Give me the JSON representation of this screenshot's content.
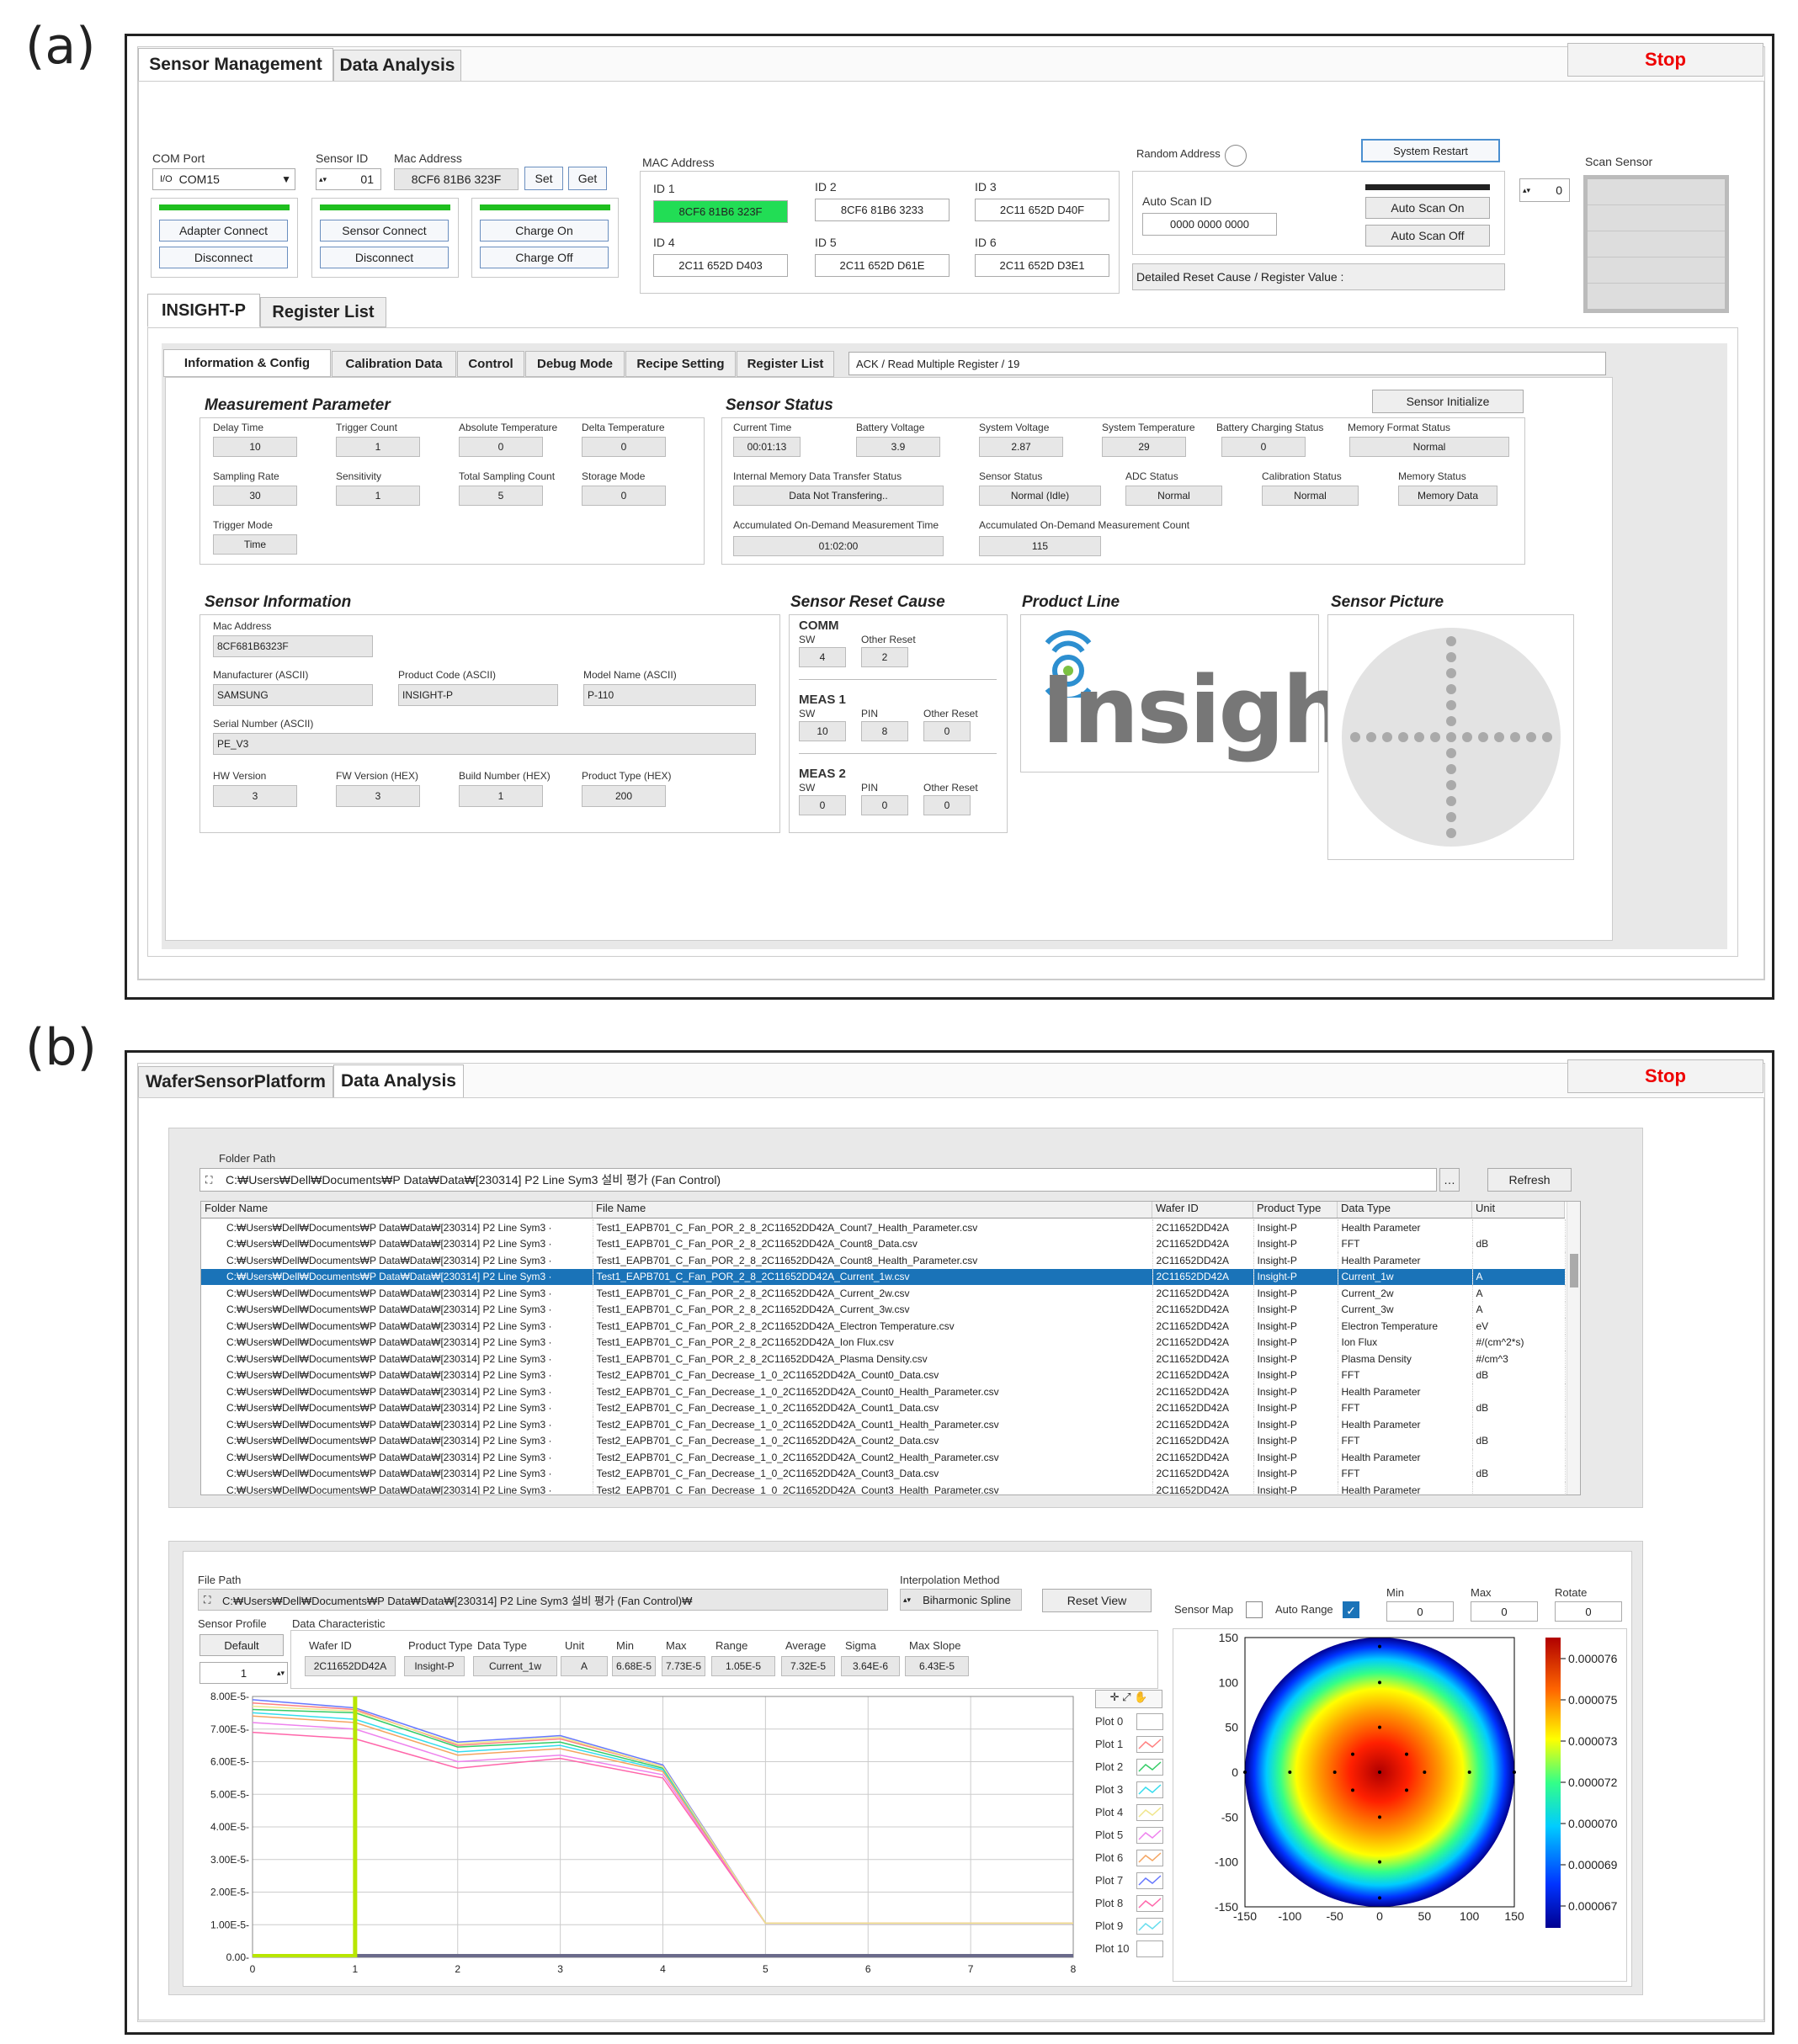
{
  "labels": {
    "a": "(a)",
    "b": "(b)"
  },
  "a": {
    "tabs": [
      "Sensor Management",
      "Data Analysis"
    ],
    "stop": "Stop",
    "com": {
      "label": "COM Port",
      "value": "COM15",
      "adapter_connect": "Adapter Connect",
      "disconnect": "Disconnect"
    },
    "sensor": {
      "id_label": "Sensor ID",
      "id": "01",
      "mac_label": "Mac Address",
      "mac": "8CF6 81B6 323F",
      "set": "Set",
      "get": "Get",
      "connect": "Sensor Connect",
      "disconnect": "Disconnect"
    },
    "charge": {
      "on": "Charge On",
      "off": "Charge Off"
    },
    "mac_panel": {
      "title": "MAC Address",
      "ids": [
        {
          "label": "ID 1",
          "value": "8CF6 81B6 323F",
          "active": true
        },
        {
          "label": "ID 2",
          "value": "8CF6 81B6 3233"
        },
        {
          "label": "ID 3",
          "value": "2C11 652D D40F"
        },
        {
          "label": "ID 4",
          "value": "2C11 652D D403"
        },
        {
          "label": "ID 5",
          "value": "2C11 652D D61E"
        },
        {
          "label": "ID 6",
          "value": "2C11 652D D3E1"
        }
      ]
    },
    "random_address": "Random Address",
    "system_restart": "System Restart",
    "auto_scan": {
      "label": "Auto Scan ID",
      "value": "0000 0000 0000",
      "on": "Auto Scan On",
      "off": "Auto Scan Off"
    },
    "detailed_reset": "Detailed Reset Cause / Register Value :",
    "scan_sensor": {
      "label": "Scan Sensor",
      "count": "0"
    },
    "device_tabs": [
      "INSIGHT-P",
      "Register List"
    ],
    "sub_tabs": [
      "Information & Config",
      "Calibration Data",
      "Control",
      "Debug Mode",
      "Recipe Setting",
      "Register List"
    ],
    "ack": "ACK / Read Multiple Register / 19",
    "measurement": {
      "title": "Measurement Parameter",
      "fields": [
        {
          "label": "Delay Time",
          "value": "10"
        },
        {
          "label": "Trigger Count",
          "value": "1"
        },
        {
          "label": "Absolute Temperature",
          "value": "0"
        },
        {
          "label": "Delta Temperature",
          "value": "0"
        },
        {
          "label": "Sampling Rate",
          "value": "30"
        },
        {
          "label": "Sensitivity",
          "value": "1"
        },
        {
          "label": "Total Sampling Count",
          "value": "5"
        },
        {
          "label": "Storage Mode",
          "value": "0"
        },
        {
          "label": "Trigger Mode",
          "value": "Time"
        }
      ]
    },
    "status": {
      "title": "Sensor Status",
      "init": "Sensor Initialize",
      "fields": [
        {
          "label": "Current Time",
          "value": "00:01:13"
        },
        {
          "label": "Battery Voltage",
          "value": "3.9"
        },
        {
          "label": "System Voltage",
          "value": "2.87"
        },
        {
          "label": "System Temperature",
          "value": "29"
        },
        {
          "label": "Battery Charging Status",
          "value": "0"
        },
        {
          "label": "Memory Format Status",
          "value": "Normal"
        },
        {
          "label": "Internal Memory Data Transfer Status",
          "value": "Data Not Transfering.."
        },
        {
          "label": "Sensor Status",
          "value": "Normal (Idle)"
        },
        {
          "label": "ADC Status",
          "value": "Normal"
        },
        {
          "label": "Calibration Status",
          "value": "Normal"
        },
        {
          "label": "Memory Status",
          "value": "Memory Data"
        },
        {
          "label": "Accumulated On-Demand Measurement Time",
          "value": "01:02:00"
        },
        {
          "label": "Accumulated On-Demand Measurement Count",
          "value": "115"
        }
      ]
    },
    "info": {
      "title": "Sensor Information",
      "fields": [
        {
          "label": "Mac Address",
          "value": "8CF681B6323F"
        },
        {
          "label": "Manufacturer (ASCII)",
          "value": "SAMSUNG"
        },
        {
          "label": "Product Code (ASCII)",
          "value": "INSIGHT-P"
        },
        {
          "label": "Model Name (ASCII)",
          "value": "P-110"
        },
        {
          "label": "Serial Number (ASCII)",
          "value": "PE_V3"
        },
        {
          "label": "HW Version",
          "value": "3"
        },
        {
          "label": "FW Version (HEX)",
          "value": "3"
        },
        {
          "label": "Build Number (HEX)",
          "value": "1"
        },
        {
          "label": "Product Type (HEX)",
          "value": "200"
        }
      ]
    },
    "reset": {
      "title": "Sensor Reset Cause",
      "comm": "COMM",
      "meas1": "MEAS 1",
      "meas2": "MEAS 2",
      "sw": "SW",
      "other": "Other Reset",
      "pin": "PIN",
      "comm_sw": "4",
      "comm_other": "2",
      "m1_sw": "10",
      "m1_pin": "8",
      "m1_other": "0",
      "m2_sw": "0",
      "m2_pin": "0",
      "m2_other": "0"
    },
    "product_line": {
      "title": "Product Line",
      "logo": "Insight"
    },
    "picture": {
      "title": "Sensor Picture"
    }
  },
  "b": {
    "tabs": [
      "WaferSensorPlatform",
      "Data Analysis"
    ],
    "stop": "Stop",
    "folder_label": "Folder Path",
    "folder_path": "C:₩Users₩Dell₩Documents₩P Data₩Data₩[230314] P2 Line Sym3 설비 평가 (Fan Control)",
    "refresh": "Refresh",
    "columns": [
      "Folder Name",
      "File Name",
      "Wafer ID",
      "Product Type",
      "Data Type",
      "Unit"
    ],
    "folder_prefix": "C:₩Users₩Dell₩Documents₩P Data₩Data₩[230314] P2 Line Sym3 ·",
    "rows": [
      {
        "file": "Test1_EAPB701_C_Fan_POR_2_8_2C11652DD42A_Count7_Health_Parameter.csv",
        "wafer": "2C11652DD42A",
        "type": "Insight-P",
        "data": "Health Parameter",
        "unit": ""
      },
      {
        "file": "Test1_EAPB701_C_Fan_POR_2_8_2C11652DD42A_Count8_Data.csv",
        "wafer": "2C11652DD42A",
        "type": "Insight-P",
        "data": "FFT",
        "unit": "dB"
      },
      {
        "file": "Test1_EAPB701_C_Fan_POR_2_8_2C11652DD42A_Count8_Health_Parameter.csv",
        "wafer": "2C11652DD42A",
        "type": "Insight-P",
        "data": "Health Parameter",
        "unit": ""
      },
      {
        "file": "Test1_EAPB701_C_Fan_POR_2_8_2C11652DD42A_Current_1w.csv",
        "wafer": "2C11652DD42A",
        "type": "Insight-P",
        "data": "Current_1w",
        "unit": "A",
        "sel": true
      },
      {
        "file": "Test1_EAPB701_C_Fan_POR_2_8_2C11652DD42A_Current_2w.csv",
        "wafer": "2C11652DD42A",
        "type": "Insight-P",
        "data": "Current_2w",
        "unit": "A"
      },
      {
        "file": "Test1_EAPB701_C_Fan_POR_2_8_2C11652DD42A_Current_3w.csv",
        "wafer": "2C11652DD42A",
        "type": "Insight-P",
        "data": "Current_3w",
        "unit": "A"
      },
      {
        "file": "Test1_EAPB701_C_Fan_POR_2_8_2C11652DD42A_Electron Temperature.csv",
        "wafer": "2C11652DD42A",
        "type": "Insight-P",
        "data": "Electron Temperature",
        "unit": "eV"
      },
      {
        "file": "Test1_EAPB701_C_Fan_POR_2_8_2C11652DD42A_Ion Flux.csv",
        "wafer": "2C11652DD42A",
        "type": "Insight-P",
        "data": "Ion Flux",
        "unit": "#/(cm^2*s)"
      },
      {
        "file": "Test1_EAPB701_C_Fan_POR_2_8_2C11652DD42A_Plasma Density.csv",
        "wafer": "2C11652DD42A",
        "type": "Insight-P",
        "data": "Plasma Density",
        "unit": "#/cm^3"
      },
      {
        "file": "Test2_EAPB701_C_Fan_Decrease_1_0_2C11652DD42A_Count0_Data.csv",
        "wafer": "2C11652DD42A",
        "type": "Insight-P",
        "data": "FFT",
        "unit": "dB"
      },
      {
        "file": "Test2_EAPB701_C_Fan_Decrease_1_0_2C11652DD42A_Count0_Health_Parameter.csv",
        "wafer": "2C11652DD42A",
        "type": "Insight-P",
        "data": "Health Parameter",
        "unit": ""
      },
      {
        "file": "Test2_EAPB701_C_Fan_Decrease_1_0_2C11652DD42A_Count1_Data.csv",
        "wafer": "2C11652DD42A",
        "type": "Insight-P",
        "data": "FFT",
        "unit": "dB"
      },
      {
        "file": "Test2_EAPB701_C_Fan_Decrease_1_0_2C11652DD42A_Count1_Health_Parameter.csv",
        "wafer": "2C11652DD42A",
        "type": "Insight-P",
        "data": "Health Parameter",
        "unit": ""
      },
      {
        "file": "Test2_EAPB701_C_Fan_Decrease_1_0_2C11652DD42A_Count2_Data.csv",
        "wafer": "2C11652DD42A",
        "type": "Insight-P",
        "data": "FFT",
        "unit": "dB"
      },
      {
        "file": "Test2_EAPB701_C_Fan_Decrease_1_0_2C11652DD42A_Count2_Health_Parameter.csv",
        "wafer": "2C11652DD42A",
        "type": "Insight-P",
        "data": "Health Parameter",
        "unit": ""
      },
      {
        "file": "Test2_EAPB701_C_Fan_Decrease_1_0_2C11652DD42A_Count3_Data.csv",
        "wafer": "2C11652DD42A",
        "type": "Insight-P",
        "data": "FFT",
        "unit": "dB"
      },
      {
        "file": "Test2_EAPB701_C_Fan_Decrease_1_0_2C11652DD42A_Count3_Health_Parameter.csv",
        "wafer": "2C11652DD42A",
        "type": "Insight-P",
        "data": "Health Parameter",
        "unit": ""
      }
    ],
    "file_label": "File Path",
    "file_path": "C:₩Users₩Dell₩Documents₩P Data₩Data₩[230314] P2 Line Sym3 설비 평가 (Fan Control)₩",
    "interp_label": "Interpolation Method",
    "interp": "Biharmonic Spline",
    "reset_view": "Reset View",
    "sensor_profile": "Sensor Profile",
    "default": "Default",
    "profile_index": "1",
    "data_char": "Data Characteristic",
    "stats": [
      {
        "label": "Wafer ID",
        "value": "2C11652DD42A"
      },
      {
        "label": "Product Type",
        "value": "Insight-P"
      },
      {
        "label": "Data Type",
        "value": "Current_1w"
      },
      {
        "label": "Unit",
        "value": "A"
      },
      {
        "label": "Min",
        "value": "6.68E-5"
      },
      {
        "label": "Max",
        "value": "7.73E-5"
      },
      {
        "label": "Range",
        "value": "1.05E-5"
      },
      {
        "label": "Average",
        "value": "7.32E-5"
      },
      {
        "label": "Sigma",
        "value": "3.64E-6"
      },
      {
        "label": "Max Slope",
        "value": "6.43E-5"
      }
    ],
    "map_controls": {
      "sensor_map": "Sensor Map",
      "auto_range": "Auto Range",
      "min_label": "Min",
      "max_label": "Max",
      "rotate_label": "Rotate",
      "min": "0",
      "max": "0",
      "rotate": "0"
    },
    "plots": [
      "Plot 0",
      "Plot 1",
      "Plot 2",
      "Plot 3",
      "Plot 4",
      "Plot 5",
      "Plot 6",
      "Plot 7",
      "Plot 8",
      "Plot 9",
      "Plot 10"
    ],
    "plot_colors": [
      "#ffffff",
      "#ff7f7f",
      "#33cc66",
      "#33ddee",
      "#f0e68c",
      "#ee82ee",
      "#f4a460",
      "#6677ff",
      "#ff66aa",
      "#66ddee",
      "#ffffff"
    ],
    "colorbar_ticks": [
      "0.000076",
      "0.000075",
      "0.000073",
      "0.000072",
      "0.000070",
      "0.000069",
      "0.000067"
    ],
    "map_ticks": [
      "-150",
      "-100",
      "-50",
      "0",
      "50",
      "100",
      "150"
    ]
  },
  "chart_data": {
    "type": "line",
    "x": [
      0,
      1,
      2,
      3,
      4,
      5,
      6,
      7,
      8
    ],
    "ylim": [
      0,
      8e-05
    ],
    "xlim": [
      0,
      8
    ],
    "yticks": [
      "0.00-",
      "1.00E-5-",
      "2.00E-5-",
      "3.00E-5-",
      "4.00E-5-",
      "5.00E-5-",
      "6.00E-5-",
      "7.00E-5-",
      "8.00E-5-"
    ],
    "cursor_x": 1,
    "series": [
      {
        "color": "#6677ff",
        "values": [
          7.9e-05,
          7.65e-05,
          6.6e-05,
          6.8e-05,
          5.9e-05,
          1.05e-05,
          1.05e-05,
          1.05e-05,
          1.05e-05
        ]
      },
      {
        "color": "#ff7f7f",
        "values": [
          7.8e-05,
          7.6e-05,
          6.5e-05,
          6.7e-05,
          5.85e-05,
          1.05e-05,
          1.05e-05,
          1.05e-05,
          1.05e-05
        ]
      },
      {
        "color": "#33cc66",
        "values": [
          7.6e-05,
          7.5e-05,
          6.45e-05,
          6.6e-05,
          5.8e-05,
          1.05e-05,
          1.05e-05,
          1.05e-05,
          1.05e-05
        ]
      },
      {
        "color": "#33ddee",
        "values": [
          7.5e-05,
          7.3e-05,
          6.3e-05,
          6.5e-05,
          5.75e-05,
          1.05e-05,
          1.05e-05,
          1.05e-05,
          1.05e-05
        ]
      },
      {
        "color": "#f4a460",
        "values": [
          7.4e-05,
          7.2e-05,
          6.2e-05,
          6.4e-05,
          5.7e-05,
          1.05e-05,
          1.05e-05,
          1.05e-05,
          1.05e-05
        ]
      },
      {
        "color": "#ee82ee",
        "values": [
          7.2e-05,
          7e-05,
          6e-05,
          6.2e-05,
          5.6e-05,
          1.05e-05,
          1.05e-05,
          1.05e-05,
          1.05e-05
        ]
      },
      {
        "color": "#ff66aa",
        "values": [
          6.9e-05,
          6.7e-05,
          5.8e-05,
          6.1e-05,
          5.5e-05,
          1.05e-05,
          1.05e-05,
          1.05e-05,
          1.05e-05
        ]
      },
      {
        "color": "#f0e68c",
        "values": [
          7.7e-05,
          7.55e-05,
          6.55e-05,
          6.75e-05,
          5.85e-05,
          1.05e-05,
          1.05e-05,
          1.05e-05,
          1.05e-05
        ]
      }
    ]
  }
}
